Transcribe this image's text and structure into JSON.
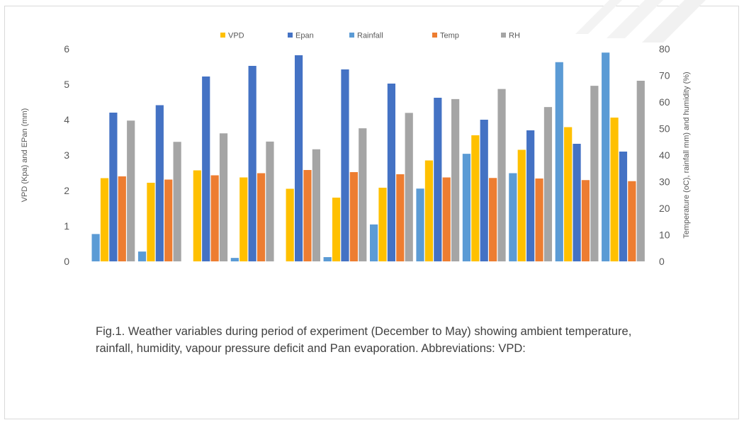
{
  "caption": "Fig.1. Weather variables during period of experiment (December to May) showing ambient temperature, rainfall, humidity, vapour pressure deficit and Pan evaporation. Abbreviations: VPD:",
  "chart_data": {
    "type": "bar",
    "categories": [
      "",
      "",
      "",
      "",
      "",
      "",
      "",
      "",
      "",
      "",
      "",
      ""
    ],
    "series": [
      {
        "name": "Rainfall",
        "axis": "right",
        "color": "#5b9bd5",
        "values": [
          10.3,
          3.7,
          0,
          1.3,
          0,
          1.6,
          13.9,
          27.4,
          40.5,
          33.2,
          75,
          78.6
        ]
      },
      {
        "name": "VPD",
        "axis": "left",
        "color": "#ffc000",
        "values": [
          2.35,
          2.22,
          2.57,
          2.37,
          2.05,
          1.8,
          2.08,
          2.85,
          3.56,
          3.15,
          3.79,
          4.06
        ]
      },
      {
        "name": "Epan",
        "axis": "left",
        "color": "#4472c4",
        "values": [
          4.2,
          4.41,
          5.22,
          5.52,
          5.82,
          5.42,
          5.02,
          4.62,
          4.0,
          3.7,
          3.32,
          3.1
        ]
      },
      {
        "name": "Temp",
        "axis": "right",
        "color": "#ed7d31",
        "values": [
          32,
          30.8,
          32.4,
          33.2,
          34.4,
          33.6,
          32.8,
          31.6,
          31.4,
          31.2,
          30.6,
          30.2
        ]
      },
      {
        "name": "RH",
        "axis": "right",
        "color": "#a5a5a5",
        "values": [
          53,
          45,
          48.2,
          45.1,
          42.2,
          50.1,
          55.9,
          61.1,
          64.9,
          58.1,
          66.1,
          68
        ]
      }
    ],
    "legend_order": [
      "VPD",
      "Epan",
      "Rainfall",
      "Temp",
      "RH"
    ],
    "legend_position": "top",
    "y_left": {
      "label": "VPD (Kpa) and EPan (mm)",
      "min": 0,
      "max": 6,
      "ticks": [
        "0",
        "1",
        "2",
        "3",
        "4",
        "5",
        "6"
      ]
    },
    "y_right": {
      "label": "Temperature (oC), rainfall mm) and humidity (%)",
      "min": 0,
      "max": 80,
      "ticks": [
        "0",
        "10",
        "20",
        "30",
        "40",
        "50",
        "60",
        "70",
        "80"
      ]
    },
    "grid": false
  }
}
